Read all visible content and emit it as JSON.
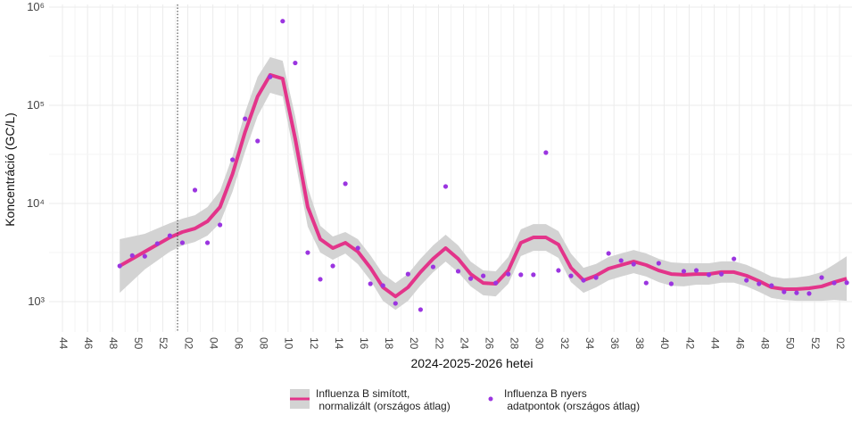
{
  "chart_data": {
    "type": "line",
    "y_label": "Koncentráció (GC/L)",
    "x_label": "2024-2025-2026 hetei",
    "log_y": true,
    "grid": true,
    "legend": "bottom",
    "categories": [
      "44",
      null,
      "46",
      null,
      "48",
      null,
      "50",
      null,
      "52",
      null,
      "02",
      null,
      "04",
      null,
      "06",
      null,
      "08",
      null,
      "10",
      null,
      "12",
      null,
      "14",
      null,
      "16",
      null,
      "18",
      null,
      "20",
      null,
      "22",
      null,
      "24",
      null,
      "26",
      null,
      "28",
      null,
      "30",
      null,
      "32",
      null,
      "34",
      null,
      "36",
      null,
      "38",
      null,
      "40",
      null,
      "42",
      null,
      "44",
      null,
      "46",
      null,
      "48",
      null,
      "50",
      null,
      "52",
      null,
      "02"
    ],
    "ylim": [
      491,
      1065000
    ],
    "yticks": [
      {
        "value": 1000,
        "label": "10³"
      },
      {
        "value": 10000,
        "label": "10⁴"
      },
      {
        "value": 100000,
        "label": "10⁵"
      },
      {
        "value": 1000000,
        "label": "10⁶"
      }
    ],
    "series": [
      {
        "name": "Influenza B simított,\n normalizált (országos átlag)",
        "type": "line",
        "color": "#e3348a",
        "band_color": "#d3d3d3",
        "values": [
          null,
          null,
          null,
          null,
          2310,
          2730,
          3230,
          3820,
          4510,
          5120,
          5560,
          6580,
          9200,
          20000,
          53400,
          123000,
          204000,
          187000,
          45700,
          9200,
          4330,
          3510,
          3980,
          3230,
          2210,
          1400,
          1130,
          1400,
          2000,
          2730,
          3510,
          2730,
          1910,
          1550,
          1520,
          2080,
          3980,
          4510,
          4510,
          3820,
          2210,
          1650,
          1840,
          2170,
          2360,
          2560,
          2360,
          2080,
          1910,
          1880,
          1910,
          1910,
          2000,
          2000,
          1840,
          1620,
          1400,
          1340,
          1340,
          1370,
          1430,
          1580,
          1720
        ],
        "upper": [
          null,
          null,
          null,
          null,
          4330,
          4610,
          4910,
          5570,
          6300,
          7010,
          7610,
          9200,
          13400,
          30400,
          84600,
          195000,
          310000,
          284000,
          77100,
          14600,
          5930,
          4610,
          5120,
          4330,
          2960,
          1920,
          1550,
          1920,
          2740,
          3740,
          4810,
          3740,
          2560,
          2080,
          2040,
          2850,
          5450,
          6170,
          6170,
          5230,
          3090,
          2210,
          2420,
          2850,
          3100,
          3360,
          3100,
          2730,
          2510,
          2470,
          2460,
          2460,
          2570,
          2570,
          2370,
          2080,
          1800,
          1720,
          1760,
          1840,
          2000,
          2400,
          2900
        ],
        "lower": [
          null,
          null,
          null,
          null,
          1230,
          1620,
          2130,
          2620,
          3230,
          3740,
          4060,
          4710,
          6310,
          13200,
          33700,
          77600,
          134000,
          123000,
          27100,
          5800,
          3160,
          2670,
          3090,
          2410,
          1650,
          1020,
          825,
          1020,
          1460,
          1990,
          2560,
          1990,
          1430,
          1160,
          1130,
          1520,
          2910,
          3290,
          3290,
          2790,
          1580,
          1230,
          1400,
          1650,
          1800,
          1950,
          1800,
          1580,
          1450,
          1430,
          1490,
          1490,
          1560,
          1560,
          1430,
          1260,
          1090,
          1040,
          1020,
          1020,
          1020,
          1040,
          1020
        ]
      },
      {
        "name": "Influenza B nyers\n adatpontok (országos átlag)",
        "type": "scatter",
        "color": "#9b35e0",
        "values": [
          null,
          null,
          null,
          null,
          2310,
          2950,
          2900,
          3900,
          4700,
          3980,
          13700,
          3980,
          6050,
          27900,
          72900,
          43300,
          195000,
          720000,
          270000,
          3160,
          1690,
          2310,
          15900,
          3510,
          1520,
          1460,
          960,
          1910,
          830,
          2260,
          14900,
          2040,
          1720,
          1830,
          1550,
          1910,
          1880,
          1880,
          33000,
          2080,
          1830,
          1650,
          1760,
          3100,
          2620,
          2410,
          1550,
          2460,
          1520,
          2040,
          2080,
          1880,
          1910,
          2730,
          1650,
          1520,
          1460,
          1260,
          1230,
          1210,
          1760,
          1550,
          1560
        ]
      }
    ]
  }
}
